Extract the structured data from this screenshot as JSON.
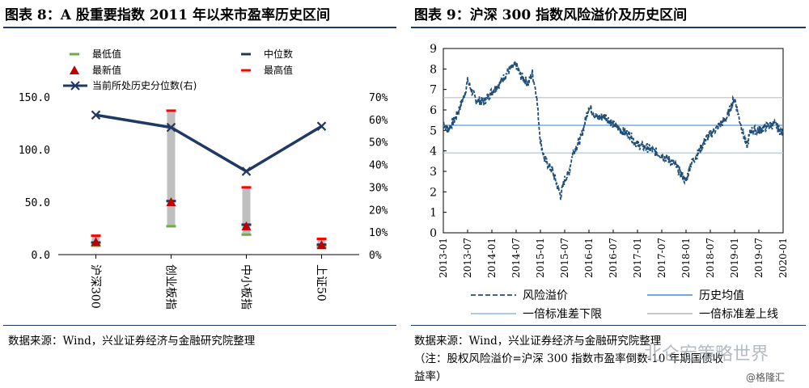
{
  "left_panel": {
    "title": "图表 8：A 股重要指数 2011 年以来市盈率历史区间",
    "source": "数据来源：Wind，兴业证券经济与金融研究院整理"
  },
  "right_panel": {
    "title": "图表 9：沪深 300 指数风险溢价及历史区间",
    "source": "数据来源：Wind，兴业证券经济与金融研究院整理",
    "note_line1": "（注：股权风险溢价=沪深 300 指数市盈率倒数-10 年期国债收",
    "note_line2": "益率）"
  },
  "watermark": {
    "channel": "北仑宏策略世界",
    "site": "@格隆汇"
  },
  "colors": {
    "title_rule": "#1f3864",
    "navy": "#1f3864",
    "min_green": "#70ad47",
    "median_navy": "#1f3864",
    "latest_red": "#c00000",
    "max_red": "#ff0000",
    "range_bar": "#bfbfbf",
    "premium_line": "#1f4e79",
    "mean_line": "#5b9bd5",
    "lower_band": "#9dc3e6",
    "upper_band": "#bfbfbf"
  },
  "chart_data": [
    {
      "type": "range-bar",
      "categories": [
        "沪深300",
        "创业板指",
        "中小板指",
        "上证50"
      ],
      "ylim_left": [
        0,
        150
      ],
      "yticks_left": [
        "0.0",
        "50.0",
        "100.0",
        "150.0"
      ],
      "ylim_right": [
        0,
        0.7
      ],
      "yticks_right": [
        "0%",
        "10%",
        "20%",
        "30%",
        "40%",
        "50%",
        "60%",
        "70%"
      ],
      "series": [
        {
          "name": "最低值",
          "values": [
            8.5,
            27.0,
            19.0,
            7.0
          ]
        },
        {
          "name": "中位数",
          "values": [
            11.5,
            51.0,
            28.5,
            9.5
          ]
        },
        {
          "name": "最新值",
          "values": [
            12.0,
            50.0,
            27.0,
            9.0
          ]
        },
        {
          "name": "最高值",
          "values": [
            18.0,
            137.0,
            64.0,
            15.0
          ]
        },
        {
          "name": "当前所处历史分位数(右)",
          "values": [
            0.62,
            0.565,
            0.37,
            0.57
          ],
          "axis": "right"
        }
      ],
      "legend_position": "top"
    },
    {
      "type": "line",
      "x_ticks": [
        "2013-01",
        "2013-07",
        "2014-01",
        "2014-07",
        "2015-01",
        "2015-07",
        "2016-01",
        "2016-07",
        "2017-01",
        "2017-07",
        "2018-01",
        "2018-07",
        "2019-01",
        "2019-07",
        "2020-01"
      ],
      "ylim": [
        0,
        9
      ],
      "yticks": [
        "0",
        "1",
        "2",
        "3",
        "4",
        "5",
        "6",
        "7",
        "8",
        "9"
      ],
      "series": [
        {
          "name": "风险溢价",
          "style": "dashed",
          "anchors": [
            [
              "2013-01",
              5.4
            ],
            [
              "2013-02",
              5.0
            ],
            [
              "2013-04",
              5.6
            ],
            [
              "2013-06",
              6.6
            ],
            [
              "2013-07",
              7.4
            ],
            [
              "2013-09",
              6.5
            ],
            [
              "2013-11",
              6.4
            ],
            [
              "2014-01",
              6.9
            ],
            [
              "2014-03",
              7.3
            ],
            [
              "2014-05",
              7.9
            ],
            [
              "2014-07",
              8.2
            ],
            [
              "2014-08",
              7.7
            ],
            [
              "2014-10",
              7.3
            ],
            [
              "2014-11",
              7.8
            ],
            [
              "2014-12",
              6.8
            ],
            [
              "2015-01",
              4.5
            ],
            [
              "2015-02",
              3.6
            ],
            [
              "2015-04",
              3.0
            ],
            [
              "2015-05",
              2.4
            ],
            [
              "2015-06",
              1.8
            ],
            [
              "2015-07",
              2.6
            ],
            [
              "2015-08",
              2.9
            ],
            [
              "2015-09",
              3.9
            ],
            [
              "2015-11",
              4.6
            ],
            [
              "2016-01",
              6.2
            ],
            [
              "2016-03",
              5.6
            ],
            [
              "2016-05",
              5.7
            ],
            [
              "2016-07",
              5.3
            ],
            [
              "2016-09",
              5.0
            ],
            [
              "2016-11",
              4.8
            ],
            [
              "2017-01",
              4.3
            ],
            [
              "2017-04",
              4.1
            ],
            [
              "2017-07",
              3.8
            ],
            [
              "2017-10",
              3.4
            ],
            [
              "2018-01",
              2.5
            ],
            [
              "2018-02",
              3.3
            ],
            [
              "2018-04",
              3.9
            ],
            [
              "2018-06",
              4.6
            ],
            [
              "2018-09",
              5.2
            ],
            [
              "2018-11",
              5.6
            ],
            [
              "2019-01",
              6.6
            ],
            [
              "2019-02",
              5.7
            ],
            [
              "2019-04",
              4.2
            ],
            [
              "2019-05",
              5.0
            ],
            [
              "2019-07",
              5.0
            ],
            [
              "2019-09",
              5.2
            ],
            [
              "2019-11",
              5.3
            ],
            [
              "2020-01",
              4.8
            ]
          ]
        },
        {
          "name": "历史均值",
          "style": "solid",
          "value": 5.25
        },
        {
          "name": "一倍标准差下限",
          "style": "solid",
          "value": 3.9
        },
        {
          "name": "一倍标准差上线",
          "style": "solid",
          "value": 6.6
        }
      ],
      "legend_position": "bottom"
    }
  ]
}
